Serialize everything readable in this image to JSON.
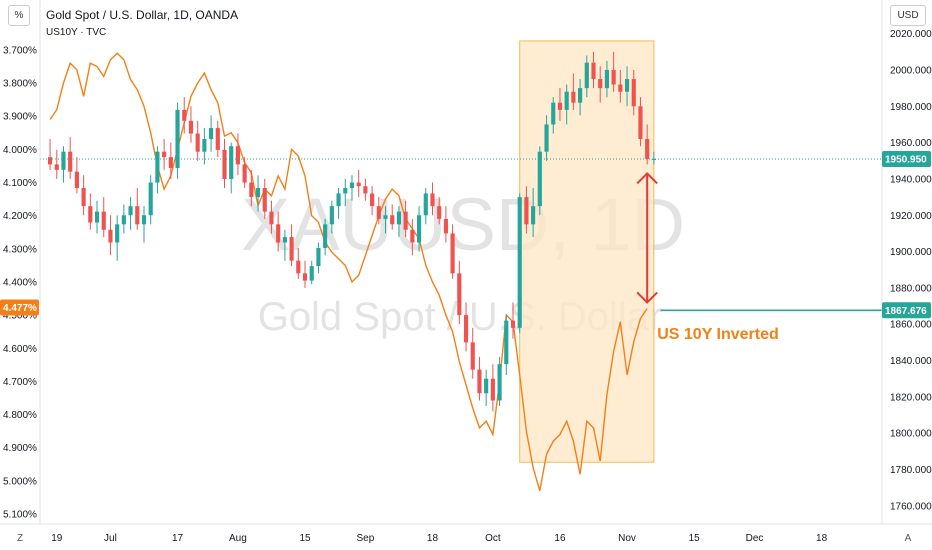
{
  "header": {
    "scale_label": "%",
    "currency_label": "USD",
    "title": "Gold Spot / U.S. Dollar, 1D, OANDA",
    "subtitle": "US10Y · TVC"
  },
  "footer": {
    "z_label": "Z",
    "a_label": "A"
  },
  "colors": {
    "up": "#26a69a",
    "down": "#ef5350",
    "us10y": "#f57f17",
    "highlight_fill": "#fde6c4",
    "highlight_stroke": "#f7b955",
    "hline": "#26a69a",
    "arrow": "#e53935"
  },
  "chart_data": {
    "type": "candlestick",
    "title": "Gold Spot / U.S. Dollar, 1D, OANDA",
    "watermark": {
      "symbol": "XAUUSD, 1D",
      "name": "Gold Spot / U.S. Dollar"
    },
    "right_axis": {
      "unit": "USD",
      "ticks": [
        2020,
        2000,
        1980,
        1960,
        1940,
        1920,
        1900,
        1880,
        1860,
        1840,
        1820,
        1800,
        1780,
        1760
      ],
      "tick_labels": [
        "2020.000",
        "2000.000",
        "1980.000",
        "1960.000",
        "1940.000",
        "1920.000",
        "1900.000",
        "1880.000",
        "1860.000",
        "1840.000",
        "1820.000",
        "1800.000",
        "1780.000",
        "1760.000"
      ],
      "range": [
        1750,
        2022
      ]
    },
    "left_axis": {
      "unit": "%",
      "inverted": true,
      "ticks": [
        3.7,
        3.8,
        3.9,
        4.0,
        4.1,
        4.2,
        4.3,
        4.4,
        4.5,
        4.6,
        4.7,
        4.8,
        4.9,
        5.0,
        5.1
      ],
      "tick_labels": [
        "3.700%",
        "3.800%",
        "3.900%",
        "4.000%",
        "4.100%",
        "4.200%",
        "4.300%",
        "4.400%",
        "4.500%",
        "4.600%",
        "4.700%",
        "4.800%",
        "4.900%",
        "5.000%",
        "5.100%"
      ],
      "range": [
        3.64,
        5.13
      ]
    },
    "x_axis": {
      "ticks": [
        {
          "label": "19",
          "i": 1
        },
        {
          "label": "Jul",
          "i": 9
        },
        {
          "label": "17",
          "i": 19
        },
        {
          "label": "Aug",
          "i": 28
        },
        {
          "label": "15",
          "i": 38
        },
        {
          "label": "Sep",
          "i": 47
        },
        {
          "label": "18",
          "i": 57
        },
        {
          "label": "Oct",
          "i": 66
        },
        {
          "label": "16",
          "i": 76
        },
        {
          "label": "Nov",
          "i": 86
        },
        {
          "label": "15",
          "i": 96
        },
        {
          "label": "Dec",
          "i": 105
        },
        {
          "label": "18",
          "i": 115
        }
      ],
      "range": [
        -1.5,
        124
      ]
    },
    "candles": [
      [
        1952,
        1962,
        1945,
        1948
      ],
      [
        1948,
        1956,
        1940,
        1945
      ],
      [
        1945,
        1958,
        1938,
        1955
      ],
      [
        1955,
        1963,
        1940,
        1944
      ],
      [
        1944,
        1952,
        1932,
        1935
      ],
      [
        1935,
        1942,
        1920,
        1925
      ],
      [
        1925,
        1932,
        1912,
        1916
      ],
      [
        1916,
        1928,
        1910,
        1922
      ],
      [
        1922,
        1930,
        1908,
        1912
      ],
      [
        1912,
        1920,
        1898,
        1905
      ],
      [
        1905,
        1920,
        1895,
        1915
      ],
      [
        1915,
        1926,
        1910,
        1920
      ],
      [
        1920,
        1930,
        1912,
        1925
      ],
      [
        1925,
        1935,
        1912,
        1915
      ],
      [
        1915,
        1925,
        1905,
        1920
      ],
      [
        1920,
        1942,
        1915,
        1938
      ],
      [
        1938,
        1958,
        1932,
        1955
      ],
      [
        1955,
        1962,
        1945,
        1952
      ],
      [
        1952,
        1960,
        1940,
        1946
      ],
      [
        1946,
        1982,
        1940,
        1978
      ],
      [
        1978,
        1985,
        1965,
        1972
      ],
      [
        1972,
        1980,
        1960,
        1965
      ],
      [
        1965,
        1972,
        1950,
        1955
      ],
      [
        1955,
        1968,
        1948,
        1962
      ],
      [
        1962,
        1975,
        1955,
        1968
      ],
      [
        1968,
        1972,
        1952,
        1956
      ],
      [
        1956,
        1962,
        1935,
        1940
      ],
      [
        1940,
        1960,
        1932,
        1958
      ],
      [
        1958,
        1965,
        1942,
        1948
      ],
      [
        1948,
        1952,
        1935,
        1938
      ],
      [
        1938,
        1945,
        1925,
        1930
      ],
      [
        1930,
        1942,
        1922,
        1935
      ],
      [
        1935,
        1940,
        1918,
        1922
      ],
      [
        1922,
        1928,
        1910,
        1915
      ],
      [
        1915,
        1922,
        1900,
        1905
      ],
      [
        1905,
        1912,
        1895,
        1908
      ],
      [
        1908,
        1915,
        1892,
        1895
      ],
      [
        1895,
        1902,
        1885,
        1888
      ],
      [
        1888,
        1895,
        1880,
        1884
      ],
      [
        1884,
        1895,
        1882,
        1892
      ],
      [
        1892,
        1905,
        1888,
        1902
      ],
      [
        1902,
        1918,
        1898,
        1915
      ],
      [
        1915,
        1928,
        1910,
        1925
      ],
      [
        1925,
        1935,
        1918,
        1932
      ],
      [
        1932,
        1940,
        1925,
        1935
      ],
      [
        1935,
        1942,
        1928,
        1938
      ],
      [
        1938,
        1945,
        1930,
        1936
      ],
      [
        1936,
        1940,
        1928,
        1932
      ],
      [
        1932,
        1936,
        1920,
        1925
      ],
      [
        1925,
        1930,
        1915,
        1918
      ],
      [
        1918,
        1925,
        1910,
        1920
      ],
      [
        1920,
        1926,
        1912,
        1915
      ],
      [
        1915,
        1925,
        1908,
        1922
      ],
      [
        1922,
        1928,
        1908,
        1912
      ],
      [
        1912,
        1918,
        1898,
        1905
      ],
      [
        1905,
        1925,
        1900,
        1920
      ],
      [
        1920,
        1935,
        1915,
        1932
      ],
      [
        1932,
        1938,
        1920,
        1925
      ],
      [
        1925,
        1930,
        1915,
        1918
      ],
      [
        1918,
        1925,
        1905,
        1910
      ],
      [
        1910,
        1915,
        1885,
        1888
      ],
      [
        1888,
        1895,
        1860,
        1865
      ],
      [
        1865,
        1872,
        1845,
        1850
      ],
      [
        1850,
        1858,
        1830,
        1835
      ],
      [
        1835,
        1842,
        1818,
        1822
      ],
      [
        1822,
        1835,
        1815,
        1830
      ],
      [
        1830,
        1838,
        1812,
        1818
      ],
      [
        1818,
        1842,
        1815,
        1838
      ],
      [
        1838,
        1865,
        1832,
        1862
      ],
      [
        1862,
        1872,
        1852,
        1858
      ],
      [
        1858,
        1932,
        1855,
        1930
      ],
      [
        1930,
        1936,
        1910,
        1915
      ],
      [
        1915,
        1935,
        1908,
        1925
      ],
      [
        1925,
        1958,
        1920,
        1955
      ],
      [
        1955,
        1975,
        1950,
        1970
      ],
      [
        1970,
        1985,
        1965,
        1982
      ],
      [
        1982,
        1990,
        1972,
        1978
      ],
      [
        1978,
        1992,
        1970,
        1988
      ],
      [
        1988,
        1998,
        1978,
        1982
      ],
      [
        1982,
        1995,
        1975,
        1990
      ],
      [
        1990,
        2008,
        1985,
        2004
      ],
      [
        2004,
        2010,
        1990,
        1995
      ],
      [
        1995,
        2002,
        1982,
        1990
      ],
      [
        1990,
        2005,
        1985,
        2000
      ],
      [
        2000,
        2010,
        1988,
        1992
      ],
      [
        1992,
        2000,
        1982,
        1988
      ],
      [
        1988,
        2002,
        1980,
        1995
      ],
      [
        1995,
        2000,
        1975,
        1980
      ],
      [
        1980,
        1985,
        1958,
        1962
      ],
      [
        1962,
        1970,
        1948,
        1951
      ],
      [
        1951,
        1955,
        1948,
        1951
      ]
    ],
    "us10y": [
      3.91,
      3.88,
      3.8,
      3.74,
      3.76,
      3.84,
      3.74,
      3.75,
      3.78,
      3.73,
      3.71,
      3.73,
      3.79,
      3.82,
      3.87,
      3.95,
      4.05,
      4.12,
      4.08,
      4.0,
      3.92,
      3.84,
      3.8,
      3.77,
      3.82,
      3.86,
      3.96,
      3.95,
      3.98,
      4.04,
      4.07,
      4.17,
      4.12,
      4.14,
      4.08,
      4.12,
      4.0,
      4.02,
      4.08,
      4.2,
      4.22,
      4.28,
      4.31,
      4.33,
      4.35,
      4.4,
      4.38,
      4.32,
      4.26,
      4.2,
      4.15,
      4.12,
      4.14,
      4.21,
      4.24,
      4.27,
      4.35,
      4.4,
      4.44,
      4.5,
      4.55,
      4.64,
      4.71,
      4.78,
      4.84,
      4.82,
      4.86,
      4.7,
      4.5,
      4.52,
      4.68,
      4.85,
      4.96,
      5.03,
      4.92,
      4.88,
      4.86,
      4.82,
      4.88,
      4.98,
      4.82,
      4.84,
      4.94,
      4.74,
      4.61,
      4.52,
      4.68,
      4.58,
      4.51,
      4.48
    ],
    "highlight_box": {
      "from_i": 70,
      "to_i": 90,
      "top_price": 2016,
      "bottom_price": 1784
    },
    "current_price": {
      "value": 1950.95,
      "label": "1950.950"
    },
    "horizontal_line": {
      "from_i": 91,
      "value": 1867.676,
      "label": "1867.676"
    },
    "yield_label": {
      "value": 4.477,
      "label": "4.477%"
    },
    "arrow": {
      "i": 89,
      "from_price": 1943,
      "to_price": 1872
    },
    "annotation": {
      "text": "US 10Y Inverted",
      "i": 90.5,
      "price": 1852
    }
  }
}
